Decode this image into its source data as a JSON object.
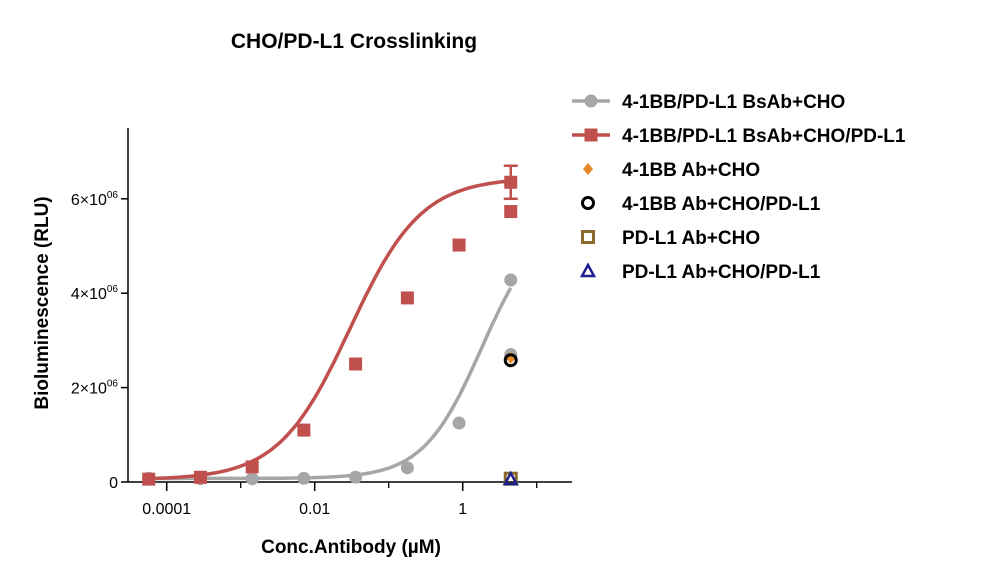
{
  "chart_data": {
    "type": "line",
    "title": "CHO/PD-L1  Crosslinking",
    "xlabel": "Conc.Antibody (µM)",
    "ylabel": "Bioluminescence (RLU)",
    "x_scale": "log",
    "xlim": [
      3e-05,
      30
    ],
    "ylim": [
      0,
      7500000
    ],
    "x_ticks": [
      {
        "value": 0.0001,
        "label": "0.0001"
      },
      {
        "value": 0.01,
        "label": "0.01"
      },
      {
        "value": 1,
        "label": "1"
      }
    ],
    "y_ticks": [
      {
        "value": 0,
        "base": "0",
        "exp": ""
      },
      {
        "value": 2000000,
        "base": "2×10",
        "exp": "06"
      },
      {
        "value": 4000000,
        "base": "4×10",
        "exp": "06"
      },
      {
        "value": 6000000,
        "base": "6×10",
        "exp": "06"
      }
    ],
    "grid": false,
    "legend_position": "right",
    "series": [
      {
        "name": "4-1BB/PD-L1 BsAb+CHO",
        "color": "#a6a6a6",
        "marker": "circle",
        "x": [
          5.72e-05,
          0.000286,
          0.00143,
          0.00714,
          0.0357,
          0.179,
          0.893,
          4.46
        ],
        "y": [
          80000,
          70000,
          70000,
          80000,
          100000,
          300000,
          1250000,
          2700000
        ],
        "fit": {
          "bottom": 75000,
          "top": 5600000,
          "ec50": 1.8,
          "hill": 1.1
        },
        "y_last_extra": {
          "x": 4.46,
          "y": 4280000
        }
      },
      {
        "name": "4-1BB/PD-L1 BsAb+CHO/PD-L1",
        "color": "#c0504d",
        "marker": "square",
        "x": [
          5.72e-05,
          0.000286,
          0.00143,
          0.00714,
          0.0357,
          0.179,
          0.893,
          4.46
        ],
        "y": [
          60000,
          100000,
          320000,
          1100000,
          2500000,
          3900000,
          5020000,
          5730000
        ],
        "y_last": 6350000,
        "error_last": 350000,
        "fit": {
          "bottom": 50000,
          "top": 6450000,
          "ec50": 0.03,
          "hill": 0.9
        }
      },
      {
        "name": "4-1BB Ab+CHO",
        "color": "#e8862a",
        "marker": "diamond",
        "x": [
          4.46
        ],
        "y": [
          2630000
        ]
      },
      {
        "name": "4-1BB Ab+CHO/PD-L1",
        "color": "#000000",
        "marker": "open-circle",
        "x": [
          4.46
        ],
        "y": [
          2580000
        ]
      },
      {
        "name": "PD-L1 Ab+CHO",
        "color": "#8c6a2d",
        "marker": "open-square",
        "x": [
          4.46
        ],
        "y": [
          70000
        ]
      },
      {
        "name": "PD-L1 Ab+CHO/PD-L1",
        "color": "#1f1f8f",
        "marker": "triangle",
        "x": [
          4.46
        ],
        "y": [
          60000
        ]
      }
    ]
  }
}
